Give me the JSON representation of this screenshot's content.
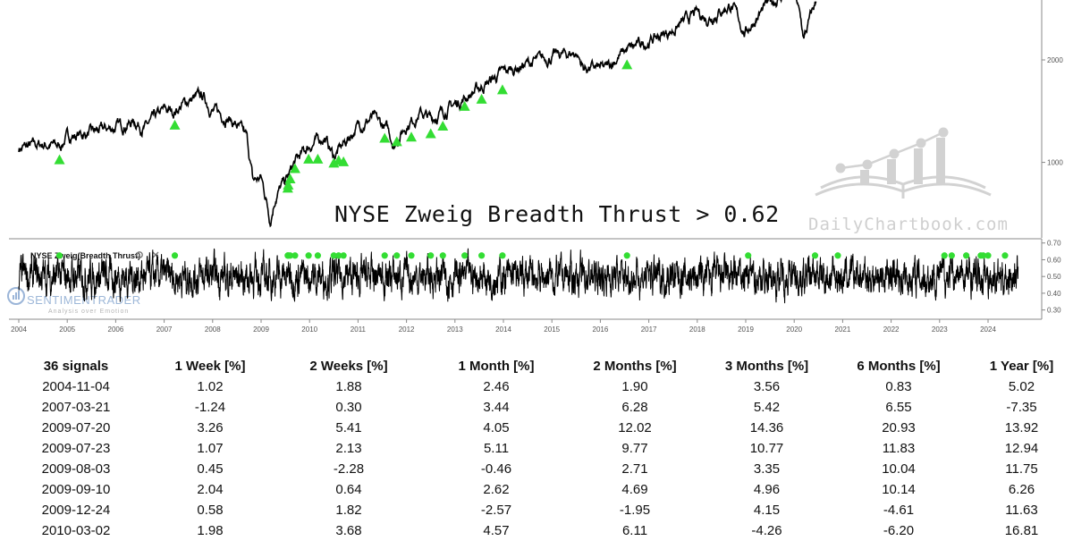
{
  "chart_data": [
    {
      "type": "line",
      "title": "NYSE Zweig Breadth Thrust > 0.62",
      "ylim_log": [
        600,
        3000
      ],
      "ytick_labels": [
        "1000",
        "2000"
      ],
      "yticks": [
        1000,
        2000
      ],
      "series": [
        {
          "values_by_year": [
            [
              2004.0,
              1100
            ],
            [
              2004.5,
              1130
            ],
            [
              2004.84,
              1115
            ],
            [
              2005.0,
              1190
            ],
            [
              2005.5,
              1220
            ],
            [
              2006.0,
              1270
            ],
            [
              2006.4,
              1320
            ],
            [
              2006.6,
              1260
            ],
            [
              2007.0,
              1420
            ],
            [
              2007.2,
              1410
            ],
            [
              2007.5,
              1520
            ],
            [
              2007.8,
              1560
            ],
            [
              2008.0,
              1420
            ],
            [
              2008.3,
              1360
            ],
            [
              2008.5,
              1280
            ],
            [
              2008.7,
              1180
            ],
            [
              2008.83,
              880
            ],
            [
              2009.0,
              900
            ],
            [
              2009.19,
              680
            ],
            [
              2009.3,
              800
            ],
            [
              2009.55,
              900
            ],
            [
              2009.7,
              1000
            ],
            [
              2010.0,
              1120
            ],
            [
              2010.3,
              1190
            ],
            [
              2010.5,
              1040
            ],
            [
              2010.75,
              1150
            ],
            [
              2011.0,
              1280
            ],
            [
              2011.3,
              1350
            ],
            [
              2011.6,
              1250
            ],
            [
              2011.75,
              1130
            ],
            [
              2012.0,
              1290
            ],
            [
              2012.3,
              1400
            ],
            [
              2012.5,
              1340
            ],
            [
              2013.0,
              1480
            ],
            [
              2013.5,
              1650
            ],
            [
              2014.0,
              1840
            ],
            [
              2014.5,
              1950
            ],
            [
              2015.0,
              2050
            ],
            [
              2015.5,
              2100
            ],
            [
              2015.65,
              1900
            ],
            [
              2016.1,
              1880
            ],
            [
              2016.5,
              2120
            ],
            [
              2017.0,
              2270
            ],
            [
              2017.5,
              2450
            ],
            [
              2018.0,
              2750
            ],
            [
              2018.2,
              2650
            ],
            [
              2018.7,
              2900
            ],
            [
              2018.98,
              2400
            ],
            [
              2019.5,
              2950
            ],
            [
              2020.0,
              3200
            ],
            [
              2020.2,
              2300
            ],
            [
              2020.5,
              3100
            ]
          ]
        }
      ],
      "signals_on_chart": [
        [
          2004.84,
          1115
        ],
        [
          2007.22,
          1410
        ],
        [
          2009.55,
          920
        ],
        [
          2009.56,
          940
        ],
        [
          2009.6,
          980
        ],
        [
          2009.7,
          1050
        ],
        [
          2009.98,
          1120
        ],
        [
          2010.17,
          1120
        ],
        [
          2010.5,
          1090
        ],
        [
          2010.6,
          1110
        ],
        [
          2010.7,
          1100
        ],
        [
          2011.55,
          1290
        ],
        [
          2011.8,
          1260
        ],
        [
          2012.1,
          1300
        ],
        [
          2012.5,
          1330
        ],
        [
          2012.75,
          1400
        ],
        [
          2013.2,
          1600
        ],
        [
          2013.55,
          1680
        ],
        [
          2013.98,
          1790
        ],
        [
          2016.55,
          2120
        ]
      ]
    },
    {
      "type": "line",
      "title": "NYSE Zweig(Breadth Thrust)",
      "ylim": [
        0.25,
        0.72
      ],
      "yticks": [
        0.3,
        0.4,
        0.5,
        0.6,
        0.7
      ],
      "ytick_labels": [
        "0.30",
        "0.40",
        "0.50",
        "0.60",
        "0.70"
      ],
      "signal_years": [
        2004.84,
        2007.22,
        2009.55,
        2009.56,
        2009.6,
        2009.7,
        2009.98,
        2010.17,
        2010.5,
        2010.6,
        2010.7,
        2011.55,
        2011.8,
        2012.1,
        2012.5,
        2012.75,
        2013.2,
        2013.55,
        2013.98,
        2016.55,
        2019.05,
        2020.43,
        2020.9,
        2023.1,
        2023.25,
        2023.55,
        2023.85,
        2023.9,
        2024.0,
        2024.35
      ]
    }
  ],
  "xaxis": {
    "tick_labels": [
      "2004",
      "2005",
      "2006",
      "2007",
      "2008",
      "2009",
      "2010",
      "2011",
      "2012",
      "2013",
      "2014",
      "2015",
      "2016",
      "2017",
      "2018",
      "2019",
      "2020",
      "2021",
      "2022",
      "2023",
      "2024"
    ]
  },
  "watermark": "DailyChartbook.com",
  "brand": {
    "name": "SENTIMENTRADER",
    "tagline": "Analysis over Emotion"
  },
  "colors": {
    "line": "#000000",
    "signal": "#33dd33",
    "watermark": "#cccccc",
    "brand": "#9bb5d8",
    "grid": "#888888"
  },
  "icons": [
    "gear-icon",
    "close-icon",
    "book-chart-icon",
    "sentimentrader-logo-icon"
  ],
  "table": {
    "headers": [
      "36 signals",
      "1 Week [%]",
      "2 Weeks [%]",
      "1 Month [%]",
      "2 Months [%]",
      "3 Months [%]",
      "6 Months [%]",
      "1 Year [%]"
    ],
    "rows": [
      [
        "2004-11-04",
        "1.02",
        "1.88",
        "2.46",
        "1.90",
        "3.56",
        "0.83",
        "5.02"
      ],
      [
        "2007-03-21",
        "-1.24",
        "0.30",
        "3.44",
        "6.28",
        "5.42",
        "6.55",
        "-7.35"
      ],
      [
        "2009-07-20",
        "3.26",
        "5.41",
        "4.05",
        "12.02",
        "14.36",
        "20.93",
        "13.92"
      ],
      [
        "2009-07-23",
        "1.07",
        "2.13",
        "5.11",
        "9.77",
        "10.77",
        "11.83",
        "12.94"
      ],
      [
        "2009-08-03",
        "0.45",
        "-2.28",
        "-0.46",
        "2.71",
        "3.35",
        "10.04",
        "11.75"
      ],
      [
        "2009-09-10",
        "2.04",
        "0.64",
        "2.62",
        "4.69",
        "4.96",
        "10.14",
        "6.26"
      ],
      [
        "2009-12-24",
        "0.58",
        "1.82",
        "-2.57",
        "-1.95",
        "4.15",
        "-4.61",
        "11.63"
      ],
      [
        "2010-03-02",
        "1.98",
        "3.68",
        "4.57",
        "6.11",
        "-4.26",
        "-6.20",
        "16.81"
      ]
    ]
  }
}
